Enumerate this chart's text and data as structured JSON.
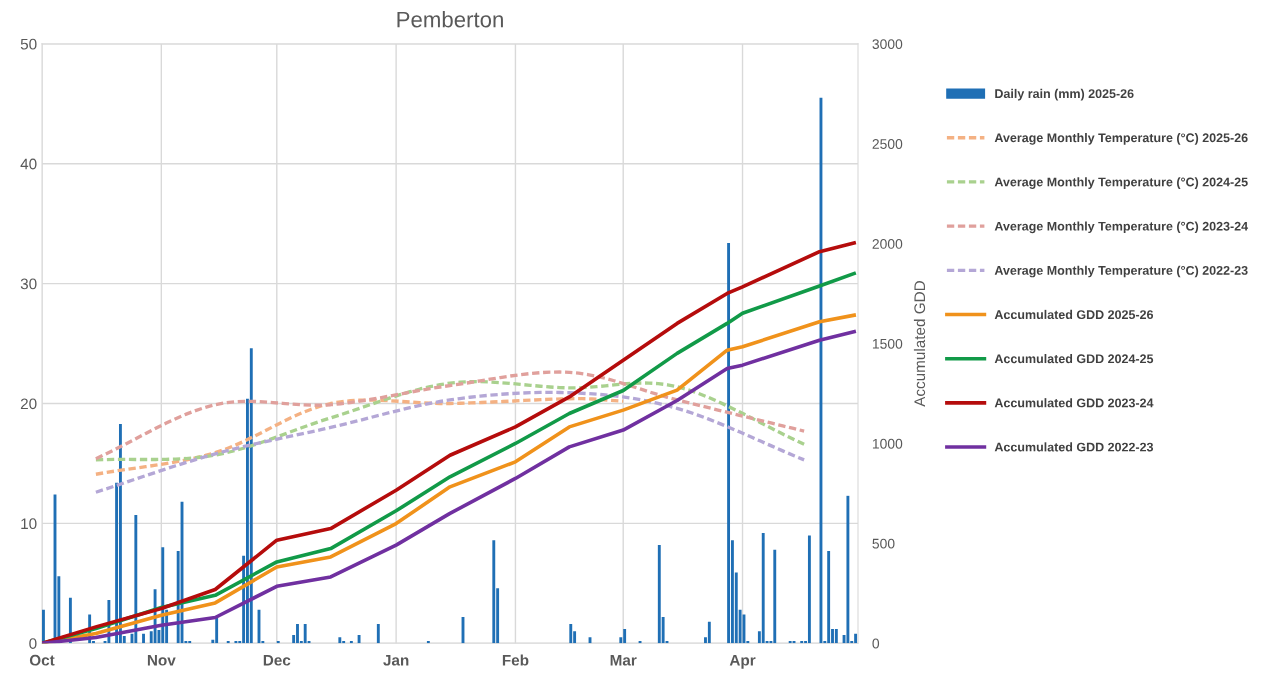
{
  "chart_data": {
    "type": "bar",
    "title": "Pemberton",
    "y2label": "Accumulated GDD",
    "xlim": [
      "2025-10-01",
      "2026-05-01"
    ],
    "xticks": [
      {
        "value": "2025-10-01",
        "label": "Oct"
      },
      {
        "value": "2025-11-01",
        "label": "Nov"
      },
      {
        "value": "2025-12-01",
        "label": "Dec"
      },
      {
        "value": "2026-01-01",
        "label": "Jan"
      },
      {
        "value": "2026-02-01",
        "label": "Feb"
      },
      {
        "value": "2026-03-01",
        "label": "Mar"
      },
      {
        "value": "2026-04-01",
        "label": "Apr"
      }
    ],
    "ylim": [
      0,
      50
    ],
    "yticks": [
      0,
      10,
      20,
      30,
      40,
      50
    ],
    "y2lim": [
      0,
      3000
    ],
    "y2ticks": [
      0,
      500,
      1000,
      1500,
      2000,
      2500,
      3000
    ],
    "grid": true,
    "legend": "right",
    "series": [
      {
        "name": "Daily rain (mm) 2025-26",
        "color": "#1f6fb5",
        "x": [
          "2025-10-01",
          "2025-10-04",
          "2025-10-05",
          "2025-10-08",
          "2025-10-13",
          "2025-10-14",
          "2025-10-17",
          "2025-10-18",
          "2025-10-20",
          "2025-10-21",
          "2025-10-22",
          "2025-10-24",
          "2025-10-25",
          "2025-10-27",
          "2025-10-29",
          "2025-10-30",
          "2025-10-31",
          "2025-11-01",
          "2025-11-02",
          "2025-11-05",
          "2025-11-06",
          "2025-11-07",
          "2025-11-08",
          "2025-11-14",
          "2025-11-15",
          "2025-11-18",
          "2025-11-20",
          "2025-11-21",
          "2025-11-22",
          "2025-11-23",
          "2025-11-24",
          "2025-11-26",
          "2025-11-27",
          "2025-12-01",
          "2025-12-05",
          "2025-12-06",
          "2025-12-07",
          "2025-12-08",
          "2025-12-09",
          "2025-12-17",
          "2025-12-18",
          "2025-12-20",
          "2025-12-22",
          "2025-12-27",
          "2026-01-09",
          "2026-01-18",
          "2026-01-26",
          "2026-01-27",
          "2026-02-15",
          "2026-02-16",
          "2026-02-20",
          "2026-02-28",
          "2026-03-01",
          "2026-03-05",
          "2026-03-10",
          "2026-03-11",
          "2026-03-12",
          "2026-03-22",
          "2026-03-23",
          "2026-03-28",
          "2026-03-29",
          "2026-03-30",
          "2026-03-31",
          "2026-04-01",
          "2026-04-02",
          "2026-04-05",
          "2026-04-06",
          "2026-04-07",
          "2026-04-08",
          "2026-04-09",
          "2026-04-13",
          "2026-04-14",
          "2026-04-16",
          "2026-04-17",
          "2026-04-18",
          "2026-04-21",
          "2026-04-22",
          "2026-04-23",
          "2026-04-24",
          "2026-04-25",
          "2026-04-27",
          "2026-04-28",
          "2026-04-29",
          "2026-04-30"
        ],
        "values": [
          2.8,
          12.4,
          5.6,
          3.8,
          2.4,
          0.2,
          0.2,
          3.6,
          13.4,
          18.3,
          0.6,
          0.8,
          10.7,
          0.8,
          1.0,
          4.5,
          1.1,
          8.0,
          2.8,
          7.7,
          11.8,
          0.2,
          0.2,
          0.3,
          2.2,
          0.2,
          0.2,
          0.2,
          7.3,
          20.4,
          24.6,
          2.8,
          0.2,
          0.2,
          0.7,
          1.6,
          0.2,
          1.6,
          0.2,
          0.5,
          0.2,
          0.2,
          0.7,
          1.6,
          0.2,
          2.2,
          8.6,
          4.6,
          1.6,
          1.0,
          0.5,
          0.5,
          1.2,
          0.2,
          8.2,
          2.2,
          0.2,
          0.5,
          1.8,
          33.4,
          8.6,
          5.9,
          2.8,
          2.4,
          0.2,
          1.0,
          9.2,
          0.2,
          0.2,
          7.8,
          0.2,
          0.2,
          0.2,
          0.2,
          9.0,
          45.5,
          0.2,
          7.7,
          1.2,
          1.2,
          0.7,
          12.3,
          0.2,
          0.8
        ]
      },
      {
        "name": "Average Monthly Temperature (°C) 2025-26",
        "type": "line",
        "line_style": "dashed",
        "color": "#f4b183",
        "x": [
          "2025-10-15",
          "2025-11-15",
          "2025-12-15",
          "2026-01-15",
          "2026-02-15",
          "2026-03-01"
        ],
        "values": [
          14.1,
          15.9,
          20.0,
          20.0,
          20.4,
          20.2
        ]
      },
      {
        "name": "Average Monthly Temperature (°C) 2024-25",
        "type": "line",
        "line_style": "dashed",
        "color": "#a9d18e",
        "x": [
          "2025-10-15",
          "2025-11-15",
          "2025-12-15",
          "2026-01-15",
          "2026-02-15",
          "2026-03-15",
          "2026-04-17"
        ],
        "values": [
          15.3,
          15.7,
          18.8,
          21.7,
          21.3,
          21.4,
          16.6
        ]
      },
      {
        "name": "Average Monthly Temperature (°C) 2023-24",
        "type": "line",
        "line_style": "dashed",
        "color": "#e0a09c",
        "x": [
          "2025-10-15",
          "2025-11-15",
          "2025-12-15",
          "2026-01-15",
          "2026-02-15",
          "2026-03-15",
          "2026-04-17"
        ],
        "values": [
          15.4,
          19.9,
          19.9,
          21.5,
          22.6,
          20.3,
          17.7
        ]
      },
      {
        "name": "Average Monthly Temperature (°C) 2022-23",
        "type": "line",
        "line_style": "dashed",
        "color": "#b4a7d6",
        "x": [
          "2025-10-15",
          "2025-11-15",
          "2025-12-15",
          "2026-01-15",
          "2026-02-15",
          "2026-03-15",
          "2026-04-17"
        ],
        "values": [
          12.6,
          15.8,
          18.0,
          20.3,
          20.9,
          19.6,
          15.3
        ]
      },
      {
        "name": "Accumulated GDD 2025-26",
        "type": "line",
        "axis": "y2",
        "color": "#f0921b",
        "x": [
          "2025-10-01",
          "2025-10-15",
          "2025-11-01",
          "2025-11-15",
          "2025-12-01",
          "2025-12-15",
          "2026-01-01",
          "2026-01-15",
          "2026-02-01",
          "2026-02-15",
          "2026-03-01",
          "2026-03-15",
          "2026-03-28",
          "2026-04-01",
          "2026-04-21",
          "2026-04-30"
        ],
        "values": [
          0,
          49,
          140,
          202,
          382,
          432,
          599,
          783,
          908,
          1083,
          1167,
          1267,
          1467,
          1484,
          1609,
          1642
        ]
      },
      {
        "name": "Accumulated GDD 2024-25",
        "type": "line",
        "axis": "y2",
        "color": "#119a48",
        "x": [
          "2025-10-01",
          "2025-10-15",
          "2025-11-01",
          "2025-11-15",
          "2025-12-01",
          "2025-12-15",
          "2026-01-01",
          "2026-01-15",
          "2026-02-01",
          "2026-02-15",
          "2026-03-01",
          "2026-03-15",
          "2026-03-28",
          "2026-04-01",
          "2026-04-21",
          "2026-04-30"
        ],
        "values": [
          0,
          74,
          179,
          240,
          407,
          474,
          663,
          833,
          1000,
          1150,
          1265,
          1451,
          1601,
          1652,
          1788,
          1851
        ]
      },
      {
        "name": "Accumulated GDD 2023-24",
        "type": "line",
        "axis": "y2",
        "color": "#b50c0c",
        "x": [
          "2025-10-01",
          "2025-10-15",
          "2025-11-01",
          "2025-11-15",
          "2025-12-01",
          "2025-12-15",
          "2026-01-01",
          "2026-01-15",
          "2026-02-01",
          "2026-02-15",
          "2026-03-01",
          "2026-03-15",
          "2026-03-28",
          "2026-04-01",
          "2026-04-21",
          "2026-04-30"
        ],
        "values": [
          0,
          82,
          174,
          269,
          516,
          574,
          766,
          941,
          1083,
          1233,
          1417,
          1601,
          1751,
          1784,
          1960,
          2004
        ]
      },
      {
        "name": "Accumulated GDD 2022-23",
        "type": "line",
        "axis": "y2",
        "color": "#7030a0",
        "x": [
          "2025-10-01",
          "2025-10-15",
          "2025-11-01",
          "2025-11-15",
          "2025-12-01",
          "2025-12-15",
          "2026-01-01",
          "2026-01-15",
          "2026-02-01",
          "2026-02-15",
          "2026-03-01",
          "2026-03-15",
          "2026-03-28",
          "2026-04-01",
          "2026-04-21",
          "2026-04-30"
        ],
        "values": [
          0,
          29,
          90,
          129,
          285,
          332,
          491,
          650,
          825,
          983,
          1067,
          1215,
          1375,
          1392,
          1517,
          1559
        ]
      }
    ]
  }
}
